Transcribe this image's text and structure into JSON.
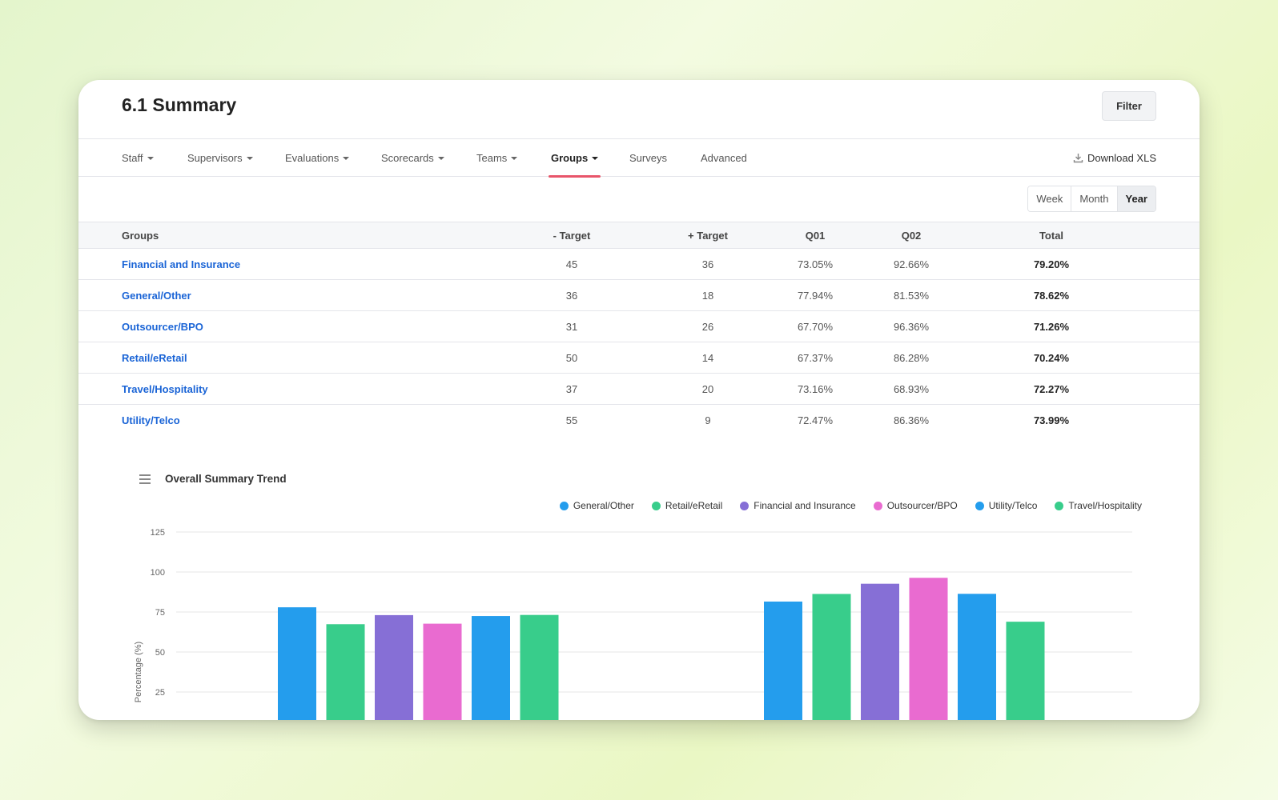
{
  "header": {
    "title": "6.1 Summary",
    "filter_label": "Filter"
  },
  "tabs": [
    {
      "label": "Staff",
      "dropdown": true
    },
    {
      "label": "Supervisors",
      "dropdown": true
    },
    {
      "label": "Evaluations",
      "dropdown": true
    },
    {
      "label": "Scorecards",
      "dropdown": true
    },
    {
      "label": "Teams",
      "dropdown": true
    },
    {
      "label": "Groups",
      "dropdown": true,
      "active": true
    },
    {
      "label": "Surveys",
      "dropdown": false
    },
    {
      "label": "Advanced",
      "dropdown": false
    }
  ],
  "download_label": "Download XLS",
  "period": {
    "options": [
      "Week",
      "Month",
      "Year"
    ],
    "selected": "Year"
  },
  "table": {
    "columns": [
      "Groups",
      "- Target",
      "+ Target",
      "Q01",
      "Q02",
      "Total"
    ],
    "rows": [
      {
        "group": "Financial and Insurance",
        "minus_target": "45",
        "plus_target": "36",
        "q01": "73.05%",
        "q02": "92.66%",
        "total": "79.20%"
      },
      {
        "group": "General/Other",
        "minus_target": "36",
        "plus_target": "18",
        "q01": "77.94%",
        "q02": "81.53%",
        "total": "78.62%"
      },
      {
        "group": "Outsourcer/BPO",
        "minus_target": "31",
        "plus_target": "26",
        "q01": "67.70%",
        "q02": "96.36%",
        "total": "71.26%"
      },
      {
        "group": "Retail/eRetail",
        "minus_target": "50",
        "plus_target": "14",
        "q01": "67.37%",
        "q02": "86.28%",
        "total": "70.24%"
      },
      {
        "group": "Travel/Hospitality",
        "minus_target": "37",
        "plus_target": "20",
        "q01": "73.16%",
        "q02": "68.93%",
        "total": "72.27%"
      },
      {
        "group": "Utility/Telco",
        "minus_target": "55",
        "plus_target": "9",
        "q01": "72.47%",
        "q02": "86.36%",
        "total": "73.99%"
      }
    ]
  },
  "chart_data": {
    "type": "bar",
    "title": "Overall Summary Trend",
    "ylabel": "Percentage (%)",
    "xlabel": "",
    "categories": [
      "Q01",
      "Q02"
    ],
    "show_category_labels": false,
    "yticks": [
      25,
      50,
      75,
      100,
      125
    ],
    "ylim": [
      0,
      125
    ],
    "grid": true,
    "legend_position": "top-right",
    "series": [
      {
        "name": "General/Other",
        "color": "#249ded",
        "values": [
          77.94,
          81.53
        ]
      },
      {
        "name": "Retail/eRetail",
        "color": "#38cd8b",
        "values": [
          67.37,
          86.28
        ]
      },
      {
        "name": "Financial and Insurance",
        "color": "#866fd6",
        "values": [
          73.05,
          92.66
        ]
      },
      {
        "name": "Outsourcer/BPO",
        "color": "#e96bd0",
        "values": [
          67.7,
          96.36
        ]
      },
      {
        "name": "Utility/Telco",
        "color": "#249ded",
        "values": [
          72.47,
          86.36
        ]
      },
      {
        "name": "Travel/Hospitality",
        "color": "#38cd8b",
        "values": [
          73.16,
          68.93
        ]
      }
    ]
  }
}
